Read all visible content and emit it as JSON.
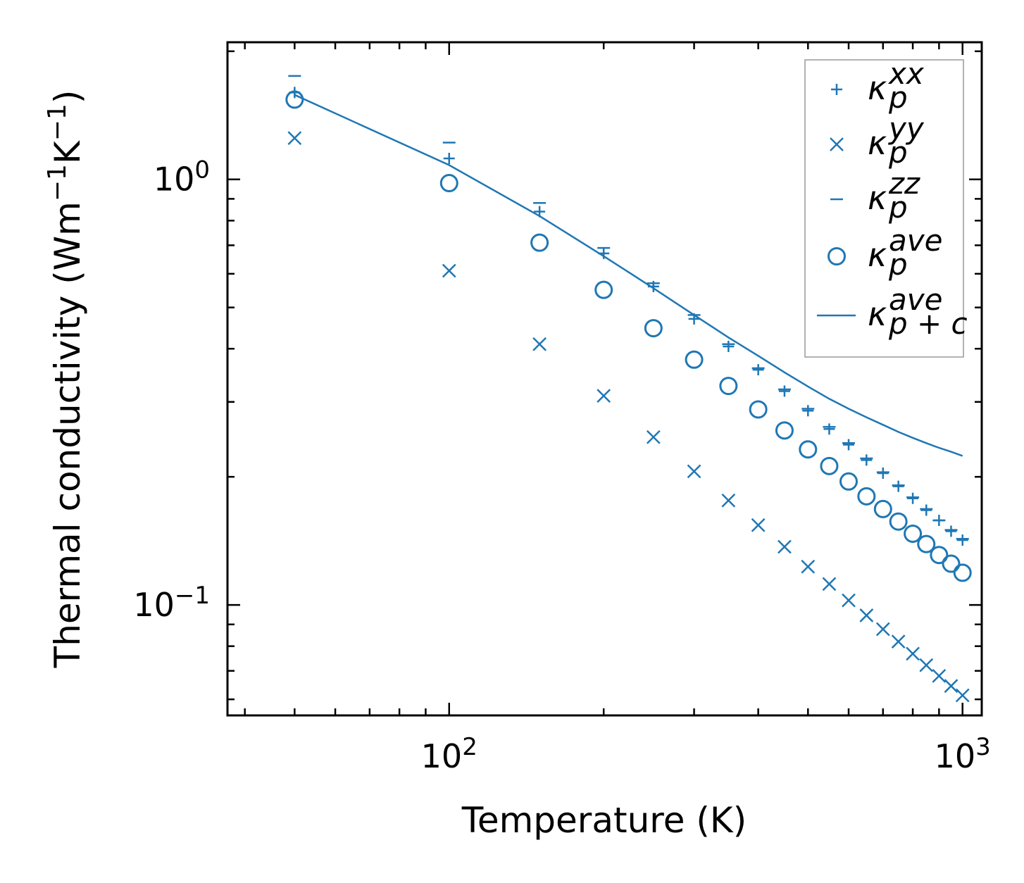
{
  "chart_data": {
    "type": "scatter",
    "xscale": "log",
    "yscale": "log",
    "xlabel": "Temperature (K)",
    "ylabel_parts": {
      "base": "Thermal conductivity (Wm",
      "exp1": "−1",
      "mid": "K",
      "exp2": "−1",
      "end": ")"
    },
    "xlim": [
      37,
      1090
    ],
    "ylim": [
      0.055,
      2.1
    ],
    "x_ticks": [
      {
        "value": 100,
        "base": "10",
        "exp": "2"
      },
      {
        "value": 1000,
        "base": "10",
        "exp": "3"
      }
    ],
    "y_ticks": [
      {
        "value": 1.0,
        "base": "10",
        "exp": "0"
      },
      {
        "value": 0.1,
        "base": "10",
        "exp": "−1"
      }
    ],
    "legend_position": "upper right",
    "color": "#1f77b4",
    "temperatures": [
      50,
      100,
      150,
      200,
      250,
      300,
      350,
      400,
      450,
      500,
      550,
      600,
      650,
      700,
      750,
      800,
      850,
      900,
      950,
      1000
    ],
    "series": [
      {
        "name": "kappa_p_xx",
        "label": {
          "sym": "κ",
          "sup": "xx",
          "sub": "p"
        },
        "marker": "plus",
        "values": [
          1.6,
          1.12,
          0.84,
          0.67,
          0.56,
          0.47,
          0.405,
          0.357,
          0.318,
          0.286,
          0.259,
          0.238,
          0.219,
          0.204,
          0.19,
          0.178,
          0.167,
          0.158,
          0.149,
          0.142
        ]
      },
      {
        "name": "kappa_p_yy",
        "label": {
          "sym": "κ",
          "sup": "yy",
          "sub": "p"
        },
        "marker": "x",
        "values": [
          1.25,
          0.61,
          0.41,
          0.31,
          0.248,
          0.206,
          0.176,
          0.154,
          0.137,
          0.123,
          0.112,
          0.1025,
          0.0945,
          0.0877,
          0.082,
          0.0768,
          0.0722,
          0.0681,
          0.0645,
          0.0613
        ]
      },
      {
        "name": "kappa_p_zz",
        "label": {
          "sym": "κ",
          "sup": "zz",
          "sub": "p"
        },
        "marker": "hline",
        "values": [
          1.75,
          1.22,
          0.88,
          0.69,
          0.57,
          0.48,
          0.41,
          0.36,
          0.321,
          0.289,
          0.262,
          0.24,
          0.221,
          0.205,
          0.191,
          0.179,
          0.168,
          0.158,
          0.15,
          0.143
        ]
      },
      {
        "name": "kappa_p_ave",
        "label": {
          "sym": "κ",
          "sup": "ave",
          "sub": "p"
        },
        "marker": "circle",
        "values": [
          1.54,
          0.98,
          0.71,
          0.55,
          0.447,
          0.377,
          0.327,
          0.288,
          0.257,
          0.232,
          0.212,
          0.195,
          0.18,
          0.168,
          0.157,
          0.147,
          0.139,
          0.131,
          0.125,
          0.119
        ]
      },
      {
        "name": "kappa_pc_ave",
        "label": {
          "sym": "κ",
          "sup": "ave",
          "sub": "p + c"
        },
        "marker": "line",
        "values": [
          1.58,
          1.08,
          0.82,
          0.66,
          0.555,
          0.48,
          0.425,
          0.385,
          0.352,
          0.326,
          0.305,
          0.289,
          0.276,
          0.265,
          0.255,
          0.247,
          0.24,
          0.234,
          0.229,
          0.224
        ]
      }
    ]
  }
}
